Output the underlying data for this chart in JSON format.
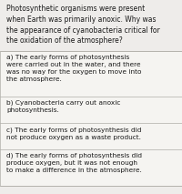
{
  "question": "Photosynthetic organisms were present\nwhen Earth was primarily anoxic. Why was\nthe appearance of cyanobacteria critical for\nthe oxidation of the atmosphere?",
  "answers": [
    "a) The early forms of photosynthesis\nwere carried out in the water, and there\nwas no way for the oxygen to move into\nthe atmosphere.",
    "b) Cyanobacteria carry out anoxic\nphotosynthesis.",
    "c) The early forms of photosynthesis did\nnot produce oxygen as a waste product.",
    "d) The early forms of photosynthesis did\nproduce oxygen, but it was not enough\nto make a difference in the atmosphere."
  ],
  "answer_line_counts": [
    4,
    2,
    2,
    3
  ],
  "bg_color": "#eeecea",
  "box_color": "#f5f4f1",
  "border_color": "#b0aea8",
  "text_color": "#1a1a1a",
  "question_fontsize": 5.5,
  "answer_fontsize": 5.3,
  "fig_width": 2.0,
  "fig_height": 2.13,
  "dpi": 100
}
